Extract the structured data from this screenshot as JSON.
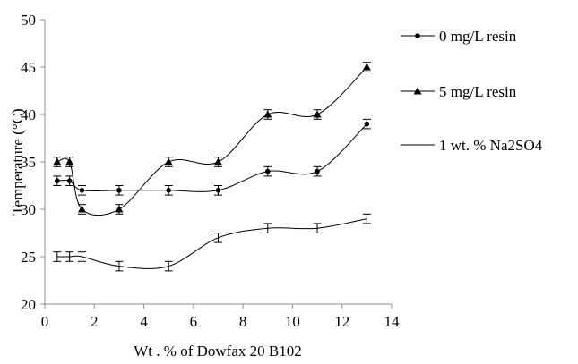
{
  "chart_data": {
    "type": "line",
    "xlabel": "Wt . % of Dowfax 20 B102",
    "ylabel": "Temperature (°C)",
    "xlim": [
      0,
      14
    ],
    "ylim": [
      20,
      50
    ],
    "x_ticks": [
      0,
      2,
      4,
      6,
      8,
      10,
      12,
      14
    ],
    "y_ticks": [
      20,
      25,
      30,
      35,
      40,
      45,
      50
    ],
    "x_tick_labels": [
      "0",
      "2",
      "4",
      "6",
      "8",
      "10",
      "12",
      "14"
    ],
    "y_tick_labels": [
      "20",
      "25",
      "30",
      "35",
      "40",
      "45",
      "50"
    ],
    "grid": false,
    "legend_position": "right",
    "error_bar": 0.5,
    "series": [
      {
        "name": "0 mg/L resin",
        "marker": "circle",
        "x": [
          0.5,
          1,
          1.5,
          3,
          5,
          7,
          9,
          11,
          13
        ],
        "y": [
          33,
          33,
          32,
          32,
          32,
          32,
          34,
          34,
          39
        ]
      },
      {
        "name": "5 mg/L  resin",
        "marker": "triangle",
        "x": [
          0.5,
          1,
          1.5,
          3,
          5,
          7,
          9,
          11,
          13
        ],
        "y": [
          35,
          35,
          30,
          30,
          35,
          35,
          40,
          40,
          45
        ]
      },
      {
        "name": "1 wt. % Na2SO4",
        "marker": "none",
        "x": [
          0.5,
          1,
          1.5,
          3,
          5,
          7,
          9,
          11,
          13
        ],
        "y": [
          25,
          25,
          25,
          24,
          24,
          27,
          28,
          28,
          29
        ]
      }
    ]
  }
}
